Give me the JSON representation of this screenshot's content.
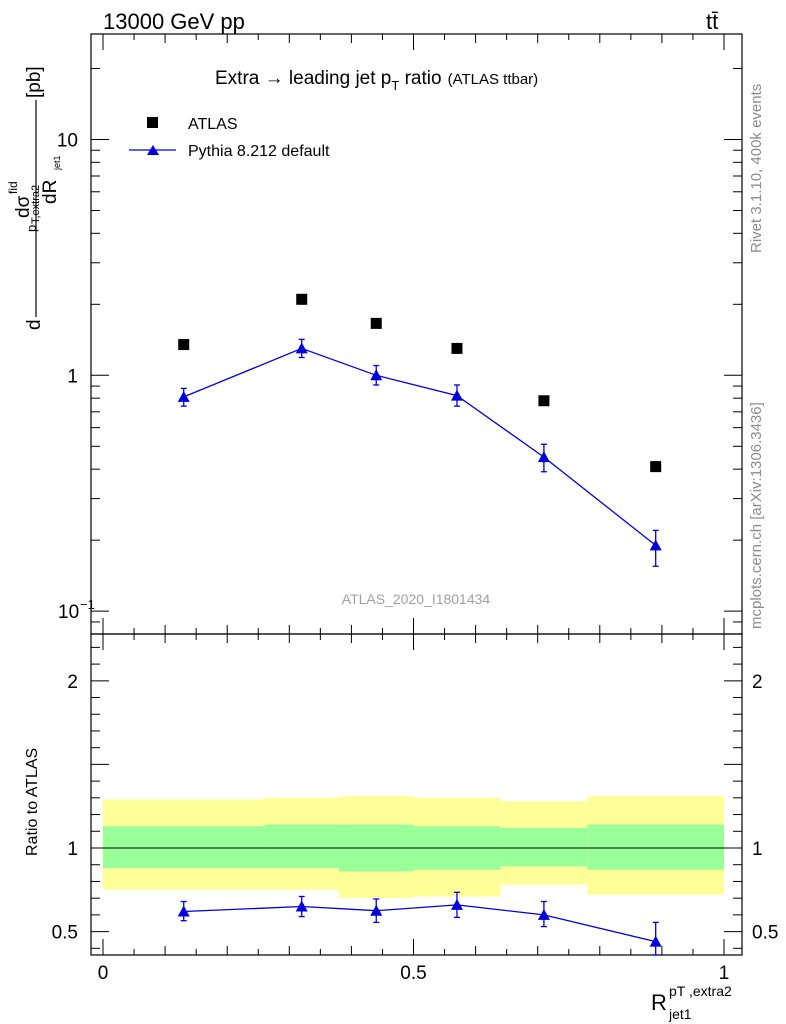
{
  "header": {
    "energy_label": "13000 GeV pp",
    "process_label": "tt̄"
  },
  "side_labels": {
    "rivet": "Rivet 3.1.10,  400k events",
    "mcplots": "mcplots.cern.ch [arXiv:1306.3436]"
  },
  "colors": {
    "mc": "#0000dd",
    "data": "#000000",
    "band_inner": "#99ff99",
    "band_outer": "#ffff99",
    "watermark": "#a0a0a0"
  },
  "chart_data": {
    "type": "scatter",
    "title": {
      "main": "Extra → leading jet p",
      "sub": "T",
      "tail": " ratio",
      "small": "(ATLAS ttbar)"
    },
    "analysis_tag": "ATLAS_2020_I1801434",
    "xlabel": {
      "base": "R",
      "sup": "pT ,extra2",
      "sub": "jet1"
    },
    "ylabel": {
      "prefix": "d",
      "sigma": "dσ",
      "sigma_sup": "fid",
      "sigma_sub": "p",
      "sigma_sub2": "T,extra2",
      "den": "dR",
      "den_sub": "jet1",
      "unit": "[pb]"
    },
    "ratio_ylabel": "Ratio to ATLAS",
    "xlim": [
      0,
      1
    ],
    "ylim_log": [
      0.08,
      28
    ],
    "ratio_ylim": [
      0.36,
      2.28
    ],
    "x_ticks": [
      {
        "v": 0,
        "label": "0"
      },
      {
        "v": 0.5,
        "label": "0.5"
      },
      {
        "v": 1,
        "label": "1"
      }
    ],
    "y_ticks": [
      {
        "v": 0.1,
        "label": "10",
        "exp": "−1"
      },
      {
        "v": 1,
        "label": "1",
        "exp": ""
      },
      {
        "v": 10,
        "label": "10",
        "exp": ""
      }
    ],
    "ratio_ticks": [
      {
        "v": 0.5,
        "label": "0.5"
      },
      {
        "v": 1,
        "label": "1"
      },
      {
        "v": 2,
        "label": "2"
      }
    ],
    "legend": [
      {
        "name": "ATLAS",
        "marker": "square"
      },
      {
        "name": "Pythia 8.212 default",
        "marker": "triangle"
      }
    ],
    "bins": [
      {
        "lo": 0.0,
        "hi": 0.26
      },
      {
        "lo": 0.26,
        "hi": 0.38
      },
      {
        "lo": 0.38,
        "hi": 0.5
      },
      {
        "lo": 0.5,
        "hi": 0.64
      },
      {
        "lo": 0.64,
        "hi": 0.78
      },
      {
        "lo": 0.78,
        "hi": 1.0
      }
    ],
    "series": [
      {
        "name": "ATLAS",
        "x": [
          0.13,
          0.32,
          0.44,
          0.57,
          0.71,
          0.89
        ],
        "y": [
          1.35,
          2.1,
          1.66,
          1.3,
          0.78,
          0.41
        ],
        "band_inner": [
          [
            0.88,
            1.13
          ],
          [
            0.88,
            1.14
          ],
          [
            0.86,
            1.14
          ],
          [
            0.87,
            1.13
          ],
          [
            0.89,
            1.12
          ],
          [
            0.87,
            1.14
          ]
        ],
        "band_outer": [
          [
            0.75,
            1.29
          ],
          [
            0.75,
            1.3
          ],
          [
            0.7,
            1.31
          ],
          [
            0.71,
            1.3
          ],
          [
            0.78,
            1.28
          ],
          [
            0.72,
            1.31
          ]
        ]
      },
      {
        "name": "Pythia 8.212 default",
        "x": [
          0.13,
          0.32,
          0.44,
          0.57,
          0.71,
          0.89
        ],
        "y": [
          0.81,
          1.3,
          1.0,
          0.82,
          0.45,
          0.19
        ],
        "yerr_lo": [
          0.74,
          1.19,
          0.91,
          0.74,
          0.39,
          0.155
        ],
        "yerr_hi": [
          0.88,
          1.42,
          1.1,
          0.91,
          0.51,
          0.22
        ],
        "ratio": [
          0.62,
          0.65,
          0.625,
          0.66,
          0.6,
          0.44
        ],
        "ratio_lo": [
          0.565,
          0.59,
          0.555,
          0.585,
          0.53,
          0.36
        ],
        "ratio_hi": [
          0.68,
          0.71,
          0.695,
          0.735,
          0.68,
          0.555
        ]
      }
    ]
  }
}
